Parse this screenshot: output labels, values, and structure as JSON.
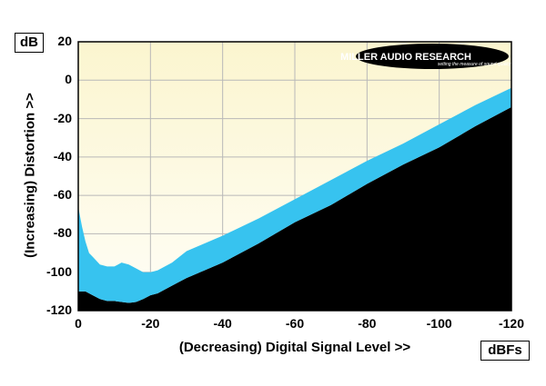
{
  "chart_data": {
    "type": "area",
    "title": "",
    "xlabel": "(Decreasing) Digital Signal Level >>",
    "ylabel": "(Increasing) Distortion >>",
    "x_unit": "dBFs",
    "y_unit": "dB",
    "xlim": [
      0,
      -120
    ],
    "ylim": [
      -120,
      20
    ],
    "x_ticks": [
      "0",
      "-20",
      "-40",
      "-60",
      "-80",
      "-100",
      "-120"
    ],
    "y_ticks": [
      "20",
      "0",
      "-20",
      "-40",
      "-60",
      "-80",
      "-100",
      "-120"
    ],
    "grid": true,
    "colors": {
      "band": "#37c3ef",
      "floor": "#000000",
      "background_top": "#fbf5cf",
      "background_bottom": "#fffef7",
      "grid": "#b8b8b8"
    },
    "series": [
      {
        "name": "upper",
        "x": [
          0,
          -1,
          -2,
          -3,
          -4,
          -6,
          -8,
          -10,
          -12,
          -14,
          -16,
          -18,
          -20,
          -22,
          -24,
          -26,
          -28,
          -30,
          -40,
          -50,
          -60,
          -70,
          -80,
          -90,
          -100,
          -110,
          -120
        ],
        "y": [
          -66,
          -76,
          -84,
          -90,
          -92,
          -96,
          -97,
          -97,
          -95,
          -96,
          -98,
          -100,
          -100,
          -99,
          -97,
          -95,
          -92,
          -89,
          -81,
          -72,
          -62,
          -52,
          -42,
          -33,
          -23,
          -13,
          -4
        ]
      },
      {
        "name": "lower",
        "x": [
          0,
          -1,
          -2,
          -3,
          -4,
          -6,
          -8,
          -10,
          -12,
          -14,
          -16,
          -18,
          -20,
          -22,
          -24,
          -26,
          -28,
          -30,
          -40,
          -50,
          -60,
          -70,
          -80,
          -90,
          -100,
          -110,
          -120
        ],
        "y": [
          -110,
          -110,
          -110,
          -111,
          -112,
          -114,
          -115,
          -115,
          -115.5,
          -116,
          -115.5,
          -114,
          -112,
          -111,
          -109,
          -107,
          -105,
          -103,
          -95,
          -85,
          -74,
          -65,
          -54,
          -44,
          -35,
          -24,
          -14
        ]
      }
    ],
    "logo": {
      "brand": "MILLER AUDIO RESEARCH",
      "tagline": "setting the measure of sound quality"
    }
  }
}
